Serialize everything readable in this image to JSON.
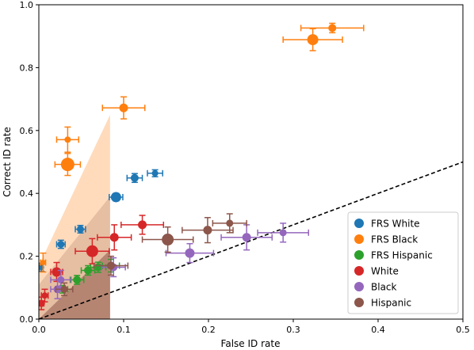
{
  "chart_data": {
    "type": "scatter",
    "xlabel": "False ID rate",
    "ylabel": "Correct ID rate",
    "xlim": [
      0.0,
      0.5
    ],
    "ylim": [
      0.0,
      1.0
    ],
    "xticks": [
      "0.0",
      "0.1",
      "0.2",
      "0.3",
      "0.4",
      "0.5"
    ],
    "yticks": [
      "0.0",
      "0.2",
      "0.4",
      "0.6",
      "0.8",
      "1.0"
    ],
    "grid": false,
    "legend_position": "bottom-right",
    "reference_line": {
      "style": "dashed",
      "x": [
        0.0,
        0.5
      ],
      "y": [
        0.0,
        0.5
      ],
      "color": "#000000"
    },
    "shaded_regions": [
      {
        "color": "#ff7f0e",
        "opacity": 0.28,
        "points": [
          [
            0.0,
            0.17
          ],
          [
            0.084,
            0.65
          ],
          [
            0.084,
            0.0
          ],
          [
            0.0,
            0.0
          ]
        ]
      },
      {
        "color": "#8c564b",
        "opacity": 0.22,
        "points": [
          [
            0.0,
            0.11
          ],
          [
            0.084,
            0.39
          ],
          [
            0.084,
            0.0
          ],
          [
            0.0,
            0.0
          ]
        ]
      },
      {
        "color": "#8c564b",
        "opacity": 0.55,
        "points": [
          [
            0.0,
            0.0
          ],
          [
            0.084,
            0.22
          ],
          [
            0.084,
            0.0
          ]
        ]
      }
    ],
    "series": [
      {
        "name": "FRS White",
        "color": "#1f77b4",
        "points": [
          {
            "x": 0.003,
            "y": 0.165,
            "xerr": 0.002,
            "yerr": 0.013,
            "size": 3.5
          },
          {
            "x": 0.026,
            "y": 0.238,
            "xerr": 0.005,
            "yerr": 0.013,
            "size": 4.5
          },
          {
            "x": 0.049,
            "y": 0.286,
            "xerr": 0.006,
            "yerr": 0.012,
            "size": 4.5
          },
          {
            "x": 0.091,
            "y": 0.388,
            "xerr": 0.008,
            "yerr": 0.012,
            "size": 6.5
          },
          {
            "x": 0.113,
            "y": 0.449,
            "xerr": 0.009,
            "yerr": 0.014,
            "size": 5.0
          },
          {
            "x": 0.137,
            "y": 0.464,
            "xerr": 0.009,
            "yerr": 0.011,
            "size": 4.0
          }
        ]
      },
      {
        "name": "FRS Black",
        "color": "#ff7f0e",
        "points": [
          {
            "x": 0.005,
            "y": 0.18,
            "xerr": 0.003,
            "yerr": 0.03,
            "size": 3.5
          },
          {
            "x": 0.034,
            "y": 0.571,
            "xerr": 0.013,
            "yerr": 0.04,
            "size": 4.0
          },
          {
            "x": 0.034,
            "y": 0.492,
            "xerr": 0.015,
            "yerr": 0.035,
            "size": 8.5
          },
          {
            "x": 0.1,
            "y": 0.672,
            "xerr": 0.025,
            "yerr": 0.035,
            "size": 5.5
          },
          {
            "x": 0.323,
            "y": 0.889,
            "xerr": 0.035,
            "yerr": 0.035,
            "size": 7.0
          },
          {
            "x": 0.346,
            "y": 0.926,
            "xerr": 0.037,
            "yerr": 0.015,
            "size": 5.0
          }
        ]
      },
      {
        "name": "FRS Hispanic",
        "color": "#2ca02c",
        "points": [
          {
            "x": 0.028,
            "y": 0.095,
            "xerr": 0.006,
            "yerr": 0.012,
            "size": 4.0
          },
          {
            "x": 0.045,
            "y": 0.125,
            "xerr": 0.008,
            "yerr": 0.014,
            "size": 5.0
          },
          {
            "x": 0.058,
            "y": 0.155,
            "xerr": 0.008,
            "yerr": 0.015,
            "size": 5.0
          },
          {
            "x": 0.07,
            "y": 0.165,
            "xerr": 0.009,
            "yerr": 0.016,
            "size": 5.0
          },
          {
            "x": 0.085,
            "y": 0.17,
            "xerr": 0.01,
            "yerr": 0.02,
            "size": 5.0
          }
        ]
      },
      {
        "name": "White",
        "color": "#d62728",
        "points": [
          {
            "x": 0.003,
            "y": 0.05,
            "xerr": 0.003,
            "yerr": 0.02,
            "size": 4.5
          },
          {
            "x": 0.007,
            "y": 0.075,
            "xerr": 0.004,
            "yerr": 0.02,
            "size": 4.0
          },
          {
            "x": 0.021,
            "y": 0.15,
            "xerr": 0.007,
            "yerr": 0.03,
            "size": 6.0
          },
          {
            "x": 0.063,
            "y": 0.216,
            "xerr": 0.02,
            "yerr": 0.04,
            "size": 7.5
          },
          {
            "x": 0.089,
            "y": 0.26,
            "xerr": 0.02,
            "yerr": 0.04,
            "size": 5.5
          },
          {
            "x": 0.122,
            "y": 0.3,
            "xerr": 0.025,
            "yerr": 0.03,
            "size": 5.5
          }
        ]
      },
      {
        "name": "Black",
        "color": "#9467bd",
        "points": [
          {
            "x": 0.022,
            "y": 0.095,
            "xerr": 0.008,
            "yerr": 0.03,
            "size": 5.0
          },
          {
            "x": 0.026,
            "y": 0.125,
            "xerr": 0.012,
            "yerr": 0.03,
            "size": 4.5
          },
          {
            "x": 0.088,
            "y": 0.165,
            "xerr": 0.014,
            "yerr": 0.03,
            "size": 5.0
          },
          {
            "x": 0.178,
            "y": 0.21,
            "xerr": 0.028,
            "yerr": 0.03,
            "size": 6.0
          },
          {
            "x": 0.245,
            "y": 0.26,
            "xerr": 0.03,
            "yerr": 0.04,
            "size": 5.5
          },
          {
            "x": 0.288,
            "y": 0.275,
            "xerr": 0.03,
            "yerr": 0.03,
            "size": 4.5
          }
        ]
      },
      {
        "name": "Hispanic",
        "color": "#8c564b",
        "points": [
          {
            "x": 0.03,
            "y": 0.095,
            "xerr": 0.01,
            "yerr": 0.02,
            "size": 4.5
          },
          {
            "x": 0.085,
            "y": 0.17,
            "xerr": 0.02,
            "yerr": 0.03,
            "size": 5.0
          },
          {
            "x": 0.152,
            "y": 0.253,
            "xerr": 0.03,
            "yerr": 0.04,
            "size": 7.5
          },
          {
            "x": 0.199,
            "y": 0.283,
            "xerr": 0.03,
            "yerr": 0.04,
            "size": 5.5
          },
          {
            "x": 0.225,
            "y": 0.305,
            "xerr": 0.02,
            "yerr": 0.03,
            "size": 4.5
          }
        ]
      }
    ]
  }
}
